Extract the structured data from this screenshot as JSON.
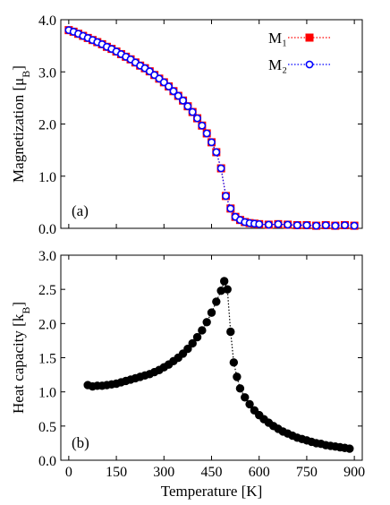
{
  "chart_data": [
    {
      "type": "scatter",
      "annotation": "(a)",
      "ylabel_parts": [
        "Magnetization [μ",
        "B",
        "]"
      ],
      "xlim": [
        -25,
        925
      ],
      "ylim": [
        0,
        4
      ],
      "xticks": [
        0,
        150,
        300,
        450,
        600,
        750,
        900
      ],
      "yticks": [
        {
          "value": 0,
          "label": "0.0"
        },
        {
          "value": 1,
          "label": "1.0"
        },
        {
          "value": 2,
          "label": "2.0"
        },
        {
          "value": 3,
          "label": "3.0"
        },
        {
          "value": 4,
          "label": "4.0"
        }
      ],
      "legend": "upper right",
      "x": [
        0,
        15,
        30,
        45,
        60,
        75,
        90,
        105,
        120,
        135,
        150,
        165,
        180,
        195,
        210,
        225,
        240,
        255,
        270,
        285,
        300,
        315,
        330,
        345,
        360,
        375,
        390,
        405,
        420,
        435,
        450,
        465,
        480,
        495,
        510,
        525,
        540,
        555,
        570,
        585,
        600,
        630,
        660,
        690,
        720,
        750,
        780,
        810,
        840,
        870,
        900
      ],
      "series": [
        {
          "name": "M₁",
          "color": "#ff0000",
          "marker": "square",
          "marker_fill": "filled",
          "values": [
            3.8,
            3.77,
            3.73,
            3.69,
            3.65,
            3.61,
            3.57,
            3.53,
            3.48,
            3.44,
            3.39,
            3.34,
            3.29,
            3.24,
            3.18,
            3.12,
            3.07,
            3.01,
            2.94,
            2.87,
            2.8,
            2.72,
            2.63,
            2.54,
            2.45,
            2.34,
            2.23,
            2.11,
            1.97,
            1.82,
            1.65,
            1.46,
            1.15,
            0.62,
            0.38,
            0.22,
            0.16,
            0.12,
            0.1,
            0.09,
            0.08,
            0.07,
            0.08,
            0.07,
            0.06,
            0.06,
            0.05,
            0.06,
            0.05,
            0.06,
            0.05
          ]
        },
        {
          "name": "M₂",
          "color": "#0000ff",
          "marker": "circle",
          "marker_fill": "open",
          "values": [
            3.8,
            3.77,
            3.73,
            3.69,
            3.65,
            3.61,
            3.57,
            3.53,
            3.48,
            3.44,
            3.39,
            3.34,
            3.29,
            3.24,
            3.18,
            3.12,
            3.07,
            3.01,
            2.94,
            2.87,
            2.8,
            2.72,
            2.63,
            2.54,
            2.45,
            2.34,
            2.23,
            2.11,
            1.97,
            1.82,
            1.65,
            1.46,
            1.15,
            0.62,
            0.38,
            0.22,
            0.16,
            0.12,
            0.1,
            0.09,
            0.08,
            0.07,
            0.08,
            0.07,
            0.06,
            0.06,
            0.05,
            0.06,
            0.05,
            0.06,
            0.05
          ]
        }
      ]
    },
    {
      "type": "scatter",
      "annotation": "(b)",
      "ylabel_parts": [
        "Heat capacity [k",
        "B",
        "]"
      ],
      "xlabel": "Temperature [K]",
      "xlim": [
        -25,
        925
      ],
      "ylim": [
        0,
        3
      ],
      "xticks": [
        0,
        150,
        300,
        450,
        600,
        750,
        900
      ],
      "yticks": [
        {
          "value": 0,
          "label": "0.0"
        },
        {
          "value": 0.5,
          "label": "0.5"
        },
        {
          "value": 1,
          "label": "1.0"
        },
        {
          "value": 1.5,
          "label": "1.5"
        },
        {
          "value": 2,
          "label": "2.0"
        },
        {
          "value": 2.5,
          "label": "2.5"
        },
        {
          "value": 3,
          "label": "3.0"
        }
      ],
      "x": [
        60,
        75,
        90,
        105,
        120,
        135,
        150,
        165,
        180,
        195,
        210,
        225,
        240,
        255,
        270,
        285,
        300,
        315,
        330,
        345,
        360,
        375,
        390,
        405,
        420,
        435,
        450,
        465,
        480,
        490,
        500,
        510,
        520,
        530,
        540,
        555,
        570,
        585,
        600,
        615,
        630,
        645,
        660,
        675,
        690,
        705,
        720,
        735,
        750,
        765,
        780,
        795,
        810,
        825,
        840,
        855,
        870,
        885
      ],
      "series": [
        {
          "color": "#000000",
          "marker": "circle",
          "marker_fill": "filled",
          "values": [
            1.1,
            1.08,
            1.09,
            1.09,
            1.1,
            1.11,
            1.12,
            1.14,
            1.16,
            1.18,
            1.2,
            1.22,
            1.24,
            1.26,
            1.29,
            1.32,
            1.36,
            1.4,
            1.45,
            1.5,
            1.56,
            1.63,
            1.71,
            1.8,
            1.9,
            2.02,
            2.16,
            2.32,
            2.48,
            2.62,
            2.5,
            1.88,
            1.43,
            1.22,
            1.05,
            0.92,
            0.82,
            0.73,
            0.66,
            0.6,
            0.55,
            0.5,
            0.46,
            0.42,
            0.39,
            0.36,
            0.33,
            0.31,
            0.29,
            0.27,
            0.25,
            0.24,
            0.22,
            0.21,
            0.2,
            0.19,
            0.18,
            0.17
          ]
        }
      ]
    }
  ]
}
